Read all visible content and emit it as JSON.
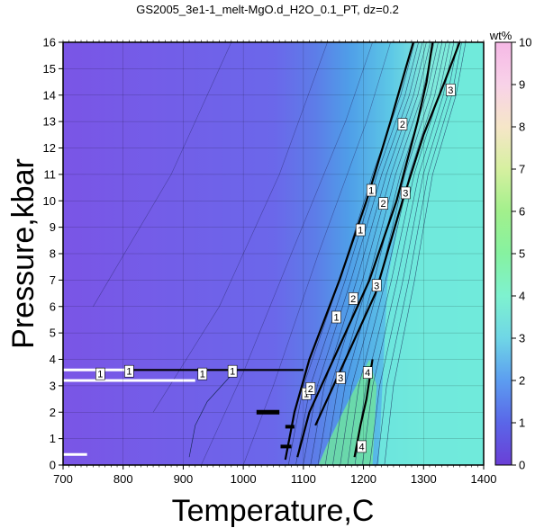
{
  "chart_data": {
    "type": "contour",
    "title": "GS2005_3e1-1_melt-MgO.d_H2O_0.1_PT, dz=0.2",
    "xlabel": "Temperature,C",
    "ylabel": "Pressure,kbar",
    "xlim": [
      700,
      1400
    ],
    "ylim": [
      0,
      16
    ],
    "xticks": [
      "700",
      "800",
      "900",
      "1000",
      "1100",
      "1200",
      "1300",
      "1400"
    ],
    "yticks": [
      "0",
      "1",
      "2",
      "3",
      "4",
      "5",
      "6",
      "7",
      "8",
      "9",
      "10",
      "11",
      "12",
      "13",
      "14",
      "15",
      "16"
    ],
    "colorbar": {
      "label": "wt%",
      "range": [
        0,
        10
      ],
      "ticks": [
        "0",
        "1",
        "2",
        "3",
        "4",
        "5",
        "6",
        "7",
        "8",
        "9",
        "10"
      ],
      "colors": [
        "#6a3fd6",
        "#5a66e8",
        "#5c9df0",
        "#6fd6e6",
        "#7ef2cf",
        "#86f2a0",
        "#a2f08c",
        "#d6f0a0",
        "#f6e6c8",
        "#f8d2e8",
        "#f6b8e6"
      ]
    },
    "contour_interval": 0.2,
    "major_contours": [
      {
        "level": 1,
        "label": "1",
        "points": [
          [
            1070,
            0.2
          ],
          [
            1085,
            2
          ],
          [
            1110,
            4
          ],
          [
            1160,
            7
          ],
          [
            1205,
            10
          ],
          [
            1245,
            13
          ],
          [
            1270,
            15
          ],
          [
            1283,
            16
          ]
        ]
      },
      {
        "level": 2,
        "label": "2",
        "points": [
          [
            1090,
            0.3
          ],
          [
            1110,
            2
          ],
          [
            1160,
            4.5
          ],
          [
            1210,
            7
          ],
          [
            1255,
            10
          ],
          [
            1290,
            13
          ],
          [
            1305,
            14.5
          ],
          [
            1315,
            16
          ]
        ]
      },
      {
        "level": 3,
        "label": "3",
        "points": [
          [
            1120,
            1.5
          ],
          [
            1160,
            3.5
          ],
          [
            1220,
            6.5
          ],
          [
            1265,
            10
          ],
          [
            1300,
            12.5
          ],
          [
            1335,
            14.5
          ],
          [
            1360,
            16
          ]
        ]
      },
      {
        "level": 4,
        "label": "4",
        "points": [
          [
            1185,
            0.3
          ],
          [
            1195,
            1.5
          ],
          [
            1205,
            2.5
          ],
          [
            1215,
            4
          ]
        ]
      },
      {
        "level": 1,
        "label": "1",
        "points": [
          [
            700,
            3.6
          ],
          [
            850,
            3.6
          ],
          [
            1000,
            3.6
          ],
          [
            1100,
            3.6
          ]
        ]
      }
    ],
    "contour_labels": [
      "1",
      "1",
      "1",
      "1",
      "1",
      "1",
      "1",
      "1",
      "2",
      "2",
      "2",
      "2",
      "3",
      "3",
      "3",
      "3",
      "4",
      "4"
    ]
  }
}
